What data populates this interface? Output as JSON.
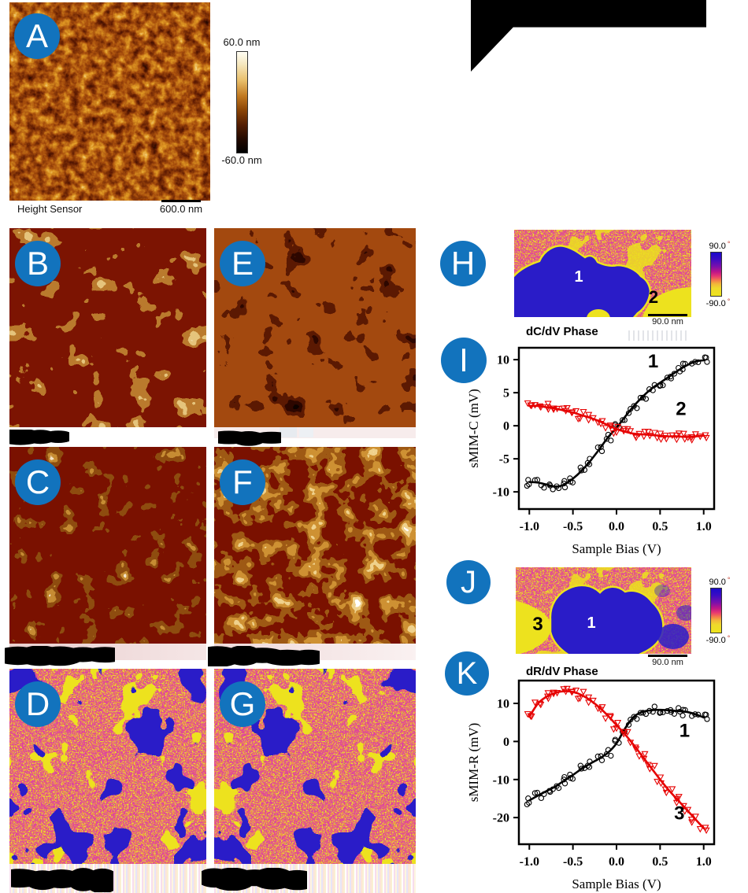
{
  "panel_a": {
    "letter": "A",
    "sensor_label": "Height Sensor",
    "scalebar_label": "600.0 nm",
    "colorbar_max": "60.0 nm",
    "colorbar_min": "-60.0 nm"
  },
  "panel_b": {
    "letter": "B"
  },
  "panel_c": {
    "letter": "C"
  },
  "panel_d": {
    "letter": "D"
  },
  "panel_e": {
    "letter": "E"
  },
  "panel_f": {
    "letter": "F"
  },
  "panel_g": {
    "letter": "G"
  },
  "panel_h": {
    "letter": "H",
    "caption": "dC/dV Phase",
    "scalebar_label": "90.0 nm",
    "colorbar_max": "90.0",
    "colorbar_min": "-90.0",
    "degree": "°",
    "region_1": "1",
    "region_2": "2"
  },
  "panel_i": {
    "letter": "I"
  },
  "panel_j": {
    "letter": "J",
    "caption": "dR/dV Phase",
    "scalebar_label": "90.0 nm",
    "colorbar_max": "90.0",
    "colorbar_min": "-90.0",
    "degree": "°",
    "region_1": "1",
    "region_3": "3"
  },
  "panel_k": {
    "letter": "K"
  },
  "colors": {
    "accent_circle": "#1273BD",
    "phase_blue": "#2A1CC8",
    "phase_yellow": "#EDE21E",
    "series_black": "#000000",
    "series_red": "#E60000"
  },
  "chart_data": [
    {
      "id": "chart-i",
      "panel": "I",
      "type": "scatter",
      "title": "",
      "xlabel": "Sample Bias (V)",
      "ylabel": "sMIM-C (mV)",
      "xlim": [
        -1.12,
        1.12
      ],
      "ylim": [
        -12.6,
        11.8
      ],
      "grid": false,
      "legend": "none",
      "xticks": {
        "values": [
          -1.0,
          -0.5,
          0.0,
          0.5,
          1.0
        ],
        "labels": [
          "-1.0",
          "-0.5",
          "0.0",
          "0.5",
          "1.0"
        ]
      },
      "yticks": {
        "values": [
          10,
          5,
          0,
          -5,
          -10
        ],
        "labels": [
          "10",
          "5",
          "0",
          "-5",
          "-10"
        ]
      },
      "series": [
        {
          "name": "1",
          "marker": "circle",
          "color": "#000000",
          "label_x": 0.36,
          "label_y": 8.8,
          "points": [
            [
              -1,
              -8.5
            ],
            [
              -0.9,
              -8.6
            ],
            [
              -0.8,
              -8.9
            ],
            [
              -0.7,
              -9.2
            ],
            [
              -0.6,
              -8.9
            ],
            [
              -0.5,
              -8
            ],
            [
              -0.4,
              -6.8
            ],
            [
              -0.3,
              -5.3
            ],
            [
              -0.2,
              -3.6
            ],
            [
              -0.1,
              -1.8
            ],
            [
              0,
              -0.3
            ],
            [
              0.1,
              1.4
            ],
            [
              0.2,
              3
            ],
            [
              0.3,
              4.4
            ],
            [
              0.4,
              5.6
            ],
            [
              0.5,
              6.5
            ],
            [
              0.6,
              7.4
            ],
            [
              0.7,
              8.3
            ],
            [
              0.8,
              9.1
            ],
            [
              0.9,
              9.7
            ],
            [
              1,
              9.9
            ]
          ]
        },
        {
          "name": "2",
          "marker": "triangle-down",
          "color": "#E60000",
          "label_x": 0.68,
          "label_y": 1.6,
          "points": [
            [
              -1,
              3
            ],
            [
              -0.9,
              3
            ],
            [
              -0.8,
              2.8
            ],
            [
              -0.7,
              2.6
            ],
            [
              -0.6,
              2.3
            ],
            [
              -0.5,
              2
            ],
            [
              -0.4,
              1.6
            ],
            [
              -0.3,
              1.2
            ],
            [
              -0.2,
              0.7
            ],
            [
              -0.1,
              0.1
            ],
            [
              0,
              -0.5
            ],
            [
              0.1,
              -0.9
            ],
            [
              0.2,
              -1.2
            ],
            [
              0.3,
              -1.3
            ],
            [
              0.4,
              -1.4
            ],
            [
              0.5,
              -1.5
            ],
            [
              0.6,
              -1.6
            ],
            [
              0.7,
              -1.6
            ],
            [
              0.8,
              -1.7
            ],
            [
              0.9,
              -1.6
            ],
            [
              1,
              -1.5
            ]
          ]
        }
      ]
    },
    {
      "id": "chart-k",
      "panel": "K",
      "type": "scatter",
      "title": "",
      "xlabel": "Sample Bias (V)",
      "ylabel": "sMIM-R (mV)",
      "xlim": [
        -1.12,
        1.12
      ],
      "ylim": [
        -27,
        16
      ],
      "grid": false,
      "legend": "none",
      "xticks": {
        "values": [
          -1.0,
          -0.5,
          0.0,
          0.5,
          1.0
        ],
        "labels": [
          "-1.0",
          "-0.5",
          "0.0",
          "0.5",
          "1.0"
        ]
      },
      "yticks": {
        "values": [
          10,
          0,
          -10,
          -20
        ],
        "labels": [
          "10",
          "0",
          "-10",
          "-20"
        ]
      },
      "series": [
        {
          "name": "1",
          "marker": "circle",
          "color": "#000000",
          "label_x": 0.72,
          "label_y": 1.2,
          "points": [
            [
              -1,
              -15.5
            ],
            [
              -0.9,
              -14.2
            ],
            [
              -0.8,
              -13
            ],
            [
              -0.7,
              -11.8
            ],
            [
              -0.6,
              -10.3
            ],
            [
              -0.5,
              -8.8
            ],
            [
              -0.4,
              -7.2
            ],
            [
              -0.3,
              -5.8
            ],
            [
              -0.2,
              -4.5
            ],
            [
              -0.1,
              -3
            ],
            [
              0,
              -0.5
            ],
            [
              0.1,
              3.5
            ],
            [
              0.2,
              6.5
            ],
            [
              0.3,
              7.8
            ],
            [
              0.4,
              8.2
            ],
            [
              0.5,
              8.3
            ],
            [
              0.6,
              8.2
            ],
            [
              0.7,
              8
            ],
            [
              0.8,
              7.8
            ],
            [
              0.9,
              7.2
            ],
            [
              1,
              6.3
            ]
          ]
        },
        {
          "name": "3",
          "marker": "triangle-down",
          "color": "#E60000",
          "label_x": 0.66,
          "label_y": -20.5,
          "points": [
            [
              -1,
              6.5
            ],
            [
              -0.9,
              10
            ],
            [
              -0.8,
              11.8
            ],
            [
              -0.7,
              12.8
            ],
            [
              -0.6,
              13.2
            ],
            [
              -0.5,
              13
            ],
            [
              -0.4,
              12.2
            ],
            [
              -0.3,
              10.8
            ],
            [
              -0.2,
              9
            ],
            [
              -0.1,
              6.8
            ],
            [
              0,
              4.3
            ],
            [
              0.1,
              1.8
            ],
            [
              0.2,
              -1
            ],
            [
              0.3,
              -4
            ],
            [
              0.4,
              -7
            ],
            [
              0.5,
              -10
            ],
            [
              0.6,
              -12.8
            ],
            [
              0.7,
              -15.3
            ],
            [
              0.8,
              -17.8
            ],
            [
              0.9,
              -20.3
            ],
            [
              1,
              -22.8
            ]
          ]
        }
      ]
    }
  ]
}
